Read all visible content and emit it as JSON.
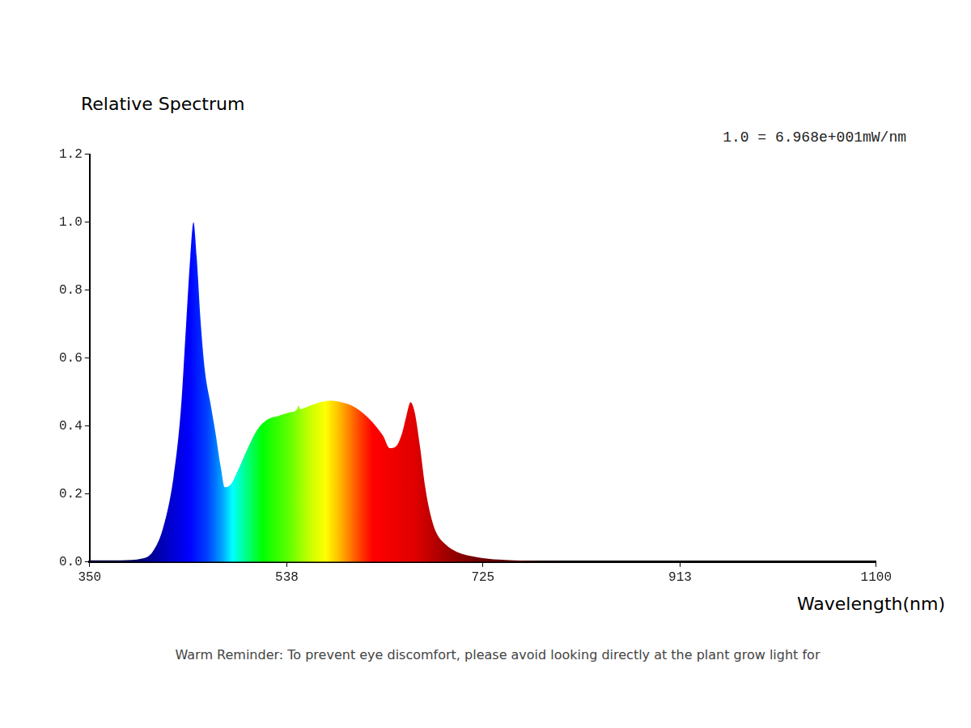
{
  "chart_data": {
    "type": "area",
    "title": "Relative Spectrum",
    "annotation": "1.0 = 6.968e+001mW/nm",
    "x_label": "Wavelength(nm)",
    "footer": "Warm Reminder: To prevent eye discomfort, please avoid looking directly at the plant grow light for",
    "x": [
      350,
      380,
      400,
      410,
      420,
      430,
      437,
      442,
      446,
      449,
      452,
      456,
      460,
      465,
      470,
      475,
      479,
      485,
      490,
      500,
      510,
      520,
      530,
      540,
      548,
      549,
      551,
      560,
      570,
      580,
      590,
      600,
      610,
      620,
      630,
      636,
      642,
      648,
      652,
      656,
      660,
      665,
      670,
      675,
      680,
      690,
      700,
      720,
      740,
      760,
      800,
      900,
      1000,
      1100
    ],
    "values": [
      0.005,
      0.005,
      0.01,
      0.03,
      0.1,
      0.25,
      0.45,
      0.7,
      0.9,
      1.0,
      0.9,
      0.7,
      0.56,
      0.47,
      0.38,
      0.28,
      0.22,
      0.23,
      0.26,
      0.33,
      0.39,
      0.42,
      0.43,
      0.44,
      0.45,
      0.46,
      0.45,
      0.46,
      0.47,
      0.475,
      0.47,
      0.46,
      0.44,
      0.41,
      0.37,
      0.335,
      0.34,
      0.38,
      0.43,
      0.47,
      0.44,
      0.34,
      0.22,
      0.14,
      0.09,
      0.05,
      0.03,
      0.014,
      0.007,
      0.004,
      0.002,
      0.002,
      0.002,
      0.002
    ],
    "xlim": [
      350,
      1100
    ],
    "xticks": [
      350,
      538,
      725,
      913,
      1100
    ],
    "ylim": [
      0,
      1.2
    ],
    "yticks": [
      {
        "value": 0,
        "label": "0.0"
      },
      0.2,
      0.4,
      0.6,
      0.8,
      {
        "value": 1,
        "label": "1.0"
      },
      1.2
    ],
    "grid": false
  }
}
